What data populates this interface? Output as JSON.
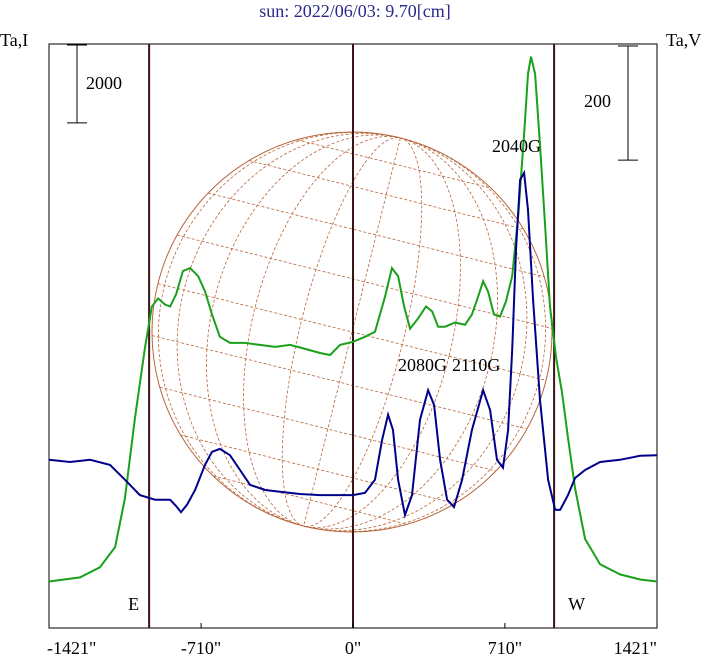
{
  "chart_data": {
    "type": "line",
    "title": "sun: 2022/06/03: 9.70[cm]",
    "y_label": "Ta,I",
    "y2_label": "Ta,V",
    "xlim": [
      -1421,
      1421
    ],
    "xticks": [
      {
        "value": -1421,
        "label": "-1421\""
      },
      {
        "value": -710,
        "label": "-710\""
      },
      {
        "value": 0,
        "label": "0\""
      },
      {
        "value": 710,
        "label": "710\""
      },
      {
        "value": 1421,
        "label": "1421\""
      }
    ],
    "ylim": [
      0,
      15000
    ],
    "y2lim": [
      0,
      1024
    ],
    "y_scale_bar": 2000,
    "y2_scale_bar": 200,
    "limb_lines": [
      {
        "x": -953,
        "label": "E"
      },
      {
        "x": 0
      },
      {
        "x": 940,
        "label": "W"
      }
    ],
    "annotations": [
      "2040G",
      "2080G",
      "2110G"
    ],
    "series": [
      {
        "color": "#1aa01a",
        "axis": "y",
        "x": [
          -1421,
          -1276,
          -1183,
          -1112,
          -1066,
          -1019,
          -972,
          -940,
          -911,
          -879,
          -855,
          -827,
          -795,
          -762,
          -724,
          -692,
          -659,
          -622,
          -575,
          -505,
          -435,
          -364,
          -294,
          -224,
          -154,
          -107,
          -61,
          0,
          56,
          103,
          150,
          182,
          211,
          239,
          267,
          304,
          341,
          370,
          398,
          430,
          477,
          524,
          556,
          585,
          608,
          631,
          659,
          687,
          715,
          744,
          772,
          800,
          818,
          832,
          851,
          874,
          898,
          921,
          949,
          977,
          1005,
          1038,
          1085,
          1155,
          1248,
          1342,
          1421
        ],
        "values": [
          1195,
          1299,
          1558,
          2078,
          3324,
          5402,
          7220,
          8258,
          8466,
          8310,
          8258,
          8570,
          9167,
          9245,
          9038,
          8648,
          8051,
          7479,
          7324,
          7324,
          7272,
          7220,
          7272,
          7168,
          7064,
          7012,
          7272,
          7350,
          7479,
          7609,
          8518,
          9245,
          9038,
          8258,
          7687,
          7947,
          8258,
          8129,
          7739,
          7739,
          7843,
          7791,
          8051,
          8518,
          8908,
          8648,
          8051,
          7999,
          8388,
          9038,
          10596,
          12673,
          14232,
          14673,
          14232,
          12414,
          10336,
          8258,
          6960,
          6051,
          4882,
          3584,
          2285,
          1636,
          1376,
          1247,
          1195
        ]
      },
      {
        "color": "#00008b",
        "axis": "y2",
        "x": [
          -1421,
          -1323,
          -1229,
          -1136,
          -1066,
          -996,
          -925,
          -855,
          -827,
          -804,
          -776,
          -738,
          -692,
          -659,
          -622,
          -575,
          -528,
          -481,
          -411,
          -341,
          -248,
          -154,
          -61,
          0,
          56,
          103,
          136,
          164,
          187,
          211,
          243,
          276,
          313,
          351,
          379,
          407,
          440,
          472,
          510,
          556,
          608,
          641,
          673,
          701,
          725,
          744,
          762,
          781,
          800,
          818,
          842,
          874,
          912,
          945,
          968,
          1005,
          1038,
          1085,
          1155,
          1248,
          1342,
          1421
        ],
        "values": [
          295,
          291,
          295,
          286,
          260,
          233,
          225,
          225,
          214,
          203,
          216,
          242,
          286,
          309,
          314,
          303,
          277,
          251,
          242,
          239,
          235,
          233,
          233,
          233,
          237,
          260,
          330,
          374,
          347,
          260,
          198,
          233,
          365,
          417,
          391,
          295,
          225,
          212,
          260,
          347,
          417,
          382,
          295,
          281,
          347,
          488,
          663,
          786,
          798,
          733,
          575,
          400,
          260,
          207,
          207,
          233,
          263,
          277,
          291,
          295,
          302,
          303
        ]
      }
    ]
  }
}
